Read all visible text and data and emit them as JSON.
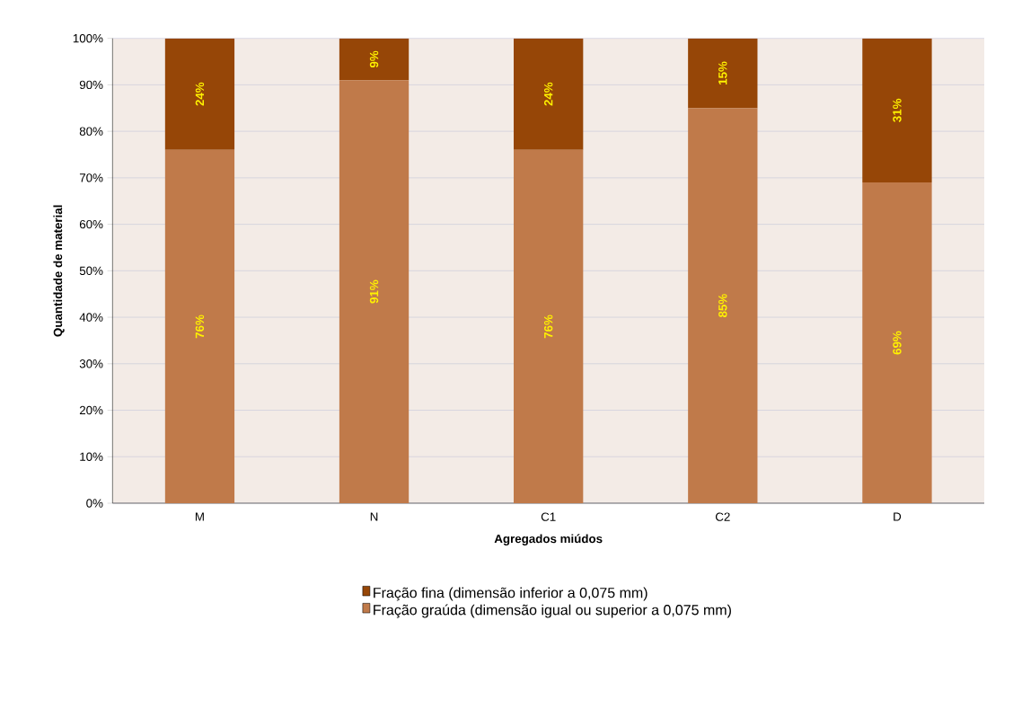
{
  "chart_data": {
    "type": "bar",
    "stacked": true,
    "xlabel": "Agregados miúdos",
    "ylabel": "Quantidade de material",
    "categories": [
      "M",
      "N",
      "C1",
      "C2",
      "D"
    ],
    "series": [
      {
        "name": "Fração graúda (dimensão igual ou superior a 0,075 mm)",
        "color": "#c07a4a",
        "values": [
          76,
          91,
          76,
          85,
          69
        ],
        "value_labels": [
          "76%",
          "91%",
          "76%",
          "85%",
          "69%"
        ]
      },
      {
        "name": "Fração fina (dimensão inferior a 0,075 mm)",
        "color": "#964607",
        "values": [
          24,
          9,
          24,
          15,
          31
        ],
        "value_labels": [
          "24%",
          "9%",
          "24%",
          "15%",
          "31%"
        ]
      }
    ],
    "ylim": [
      0,
      100
    ],
    "yticks": [
      {
        "value": 0,
        "label": "0%"
      },
      {
        "value": 10,
        "label": "10%"
      },
      {
        "value": 20,
        "label": "20%"
      },
      {
        "value": 30,
        "label": "30%"
      },
      {
        "value": 40,
        "label": "40%"
      },
      {
        "value": 50,
        "label": "50%"
      },
      {
        "value": 60,
        "label": "60%"
      },
      {
        "value": 70,
        "label": "70%"
      },
      {
        "value": 80,
        "label": "80%"
      },
      {
        "value": 90,
        "label": "90%"
      },
      {
        "value": 100,
        "label": "100%"
      }
    ],
    "grid": "y",
    "legend": "bottom"
  }
}
